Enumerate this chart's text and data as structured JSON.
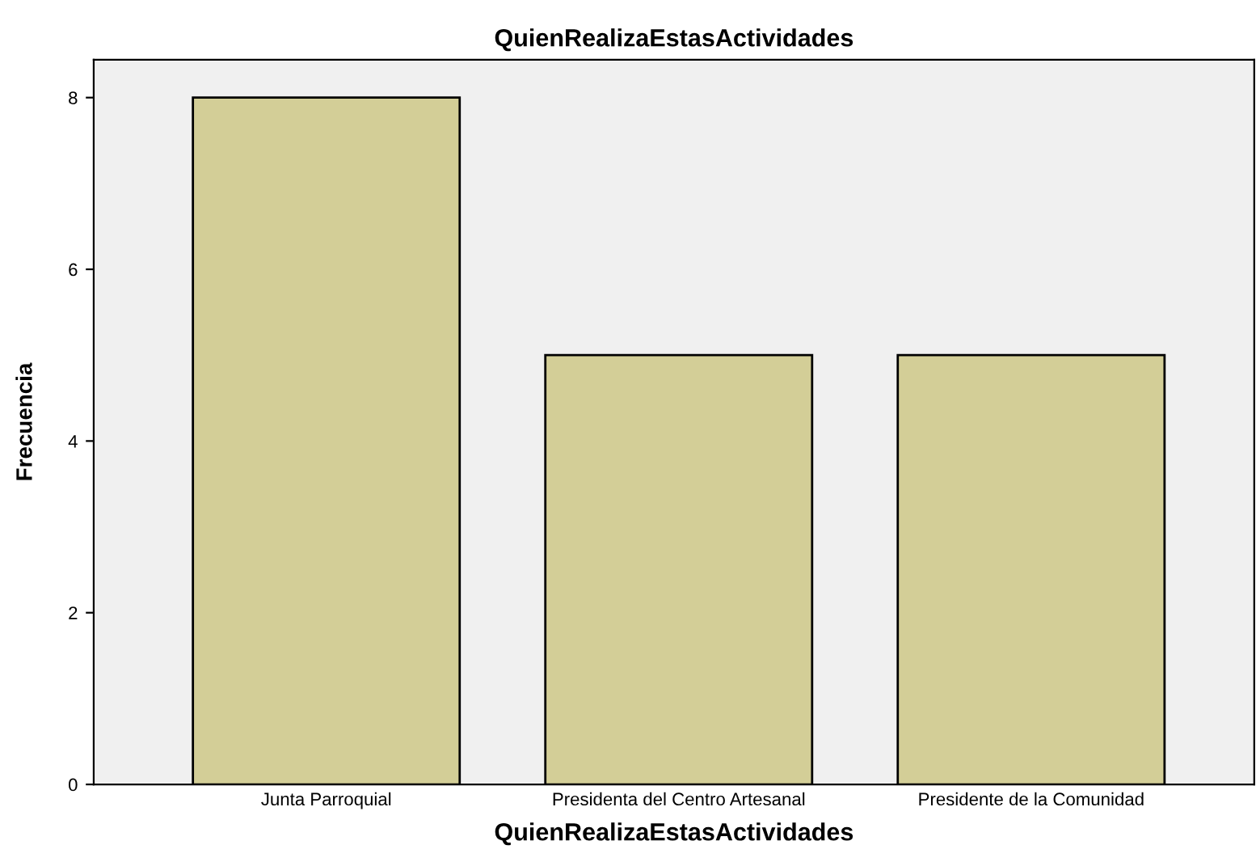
{
  "chart_data": {
    "type": "bar",
    "title": "QuienRealizaEstasActividades",
    "xlabel": "QuienRealizaEstasActividades",
    "ylabel": "Frecuencia",
    "categories": [
      "Junta Parroquial",
      "Presidenta del Centro Artesanal",
      "Presidente de la Comunidad"
    ],
    "values": [
      8,
      5,
      5
    ],
    "color": "#d3ce97",
    "ylim": [
      0,
      8.44
    ],
    "yticks": [
      0,
      2,
      4,
      6,
      8
    ],
    "grid": false,
    "legend": false
  }
}
